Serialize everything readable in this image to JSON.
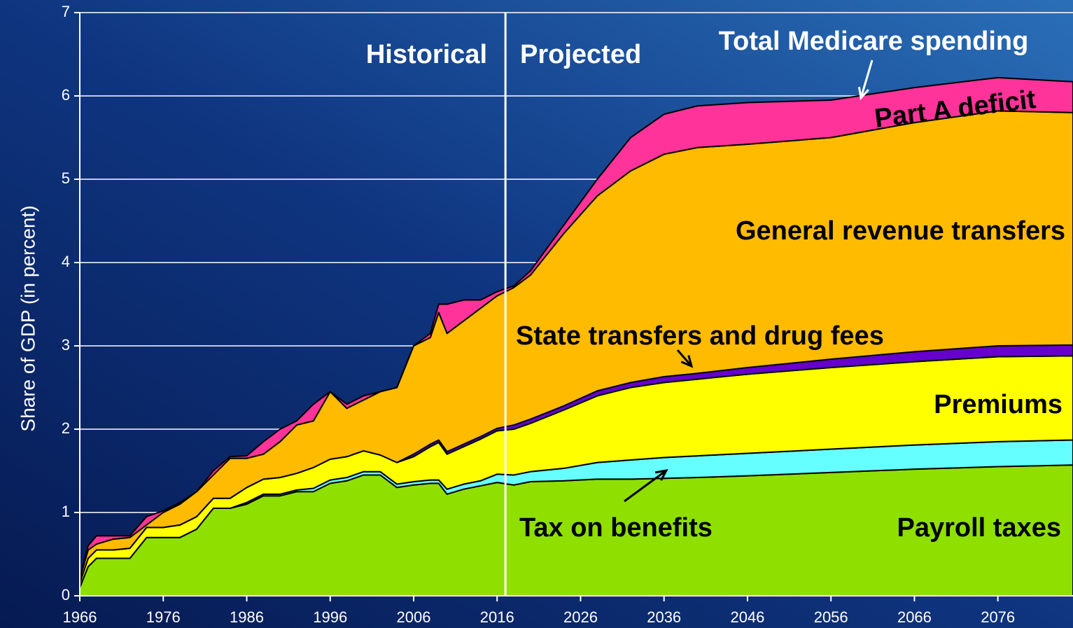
{
  "chart_data": {
    "type": "stacked_area",
    "y_label": "Share of GDP (in percent)",
    "annotations": [
      "Historical",
      "Projected",
      "Total Medicare spending"
    ],
    "divider_x": 2017,
    "x": [
      1966,
      1967,
      1968,
      1970,
      1972,
      1974,
      1976,
      1978,
      1980,
      1982,
      1984,
      1986,
      1988,
      1990,
      1992,
      1994,
      1996,
      1998,
      2000,
      2002,
      2004,
      2006,
      2008,
      2009,
      2010,
      2012,
      2014,
      2016,
      2018,
      2020,
      2024,
      2028,
      2032,
      2036,
      2040,
      2046,
      2056,
      2066,
      2076,
      2085
    ],
    "series": [
      {
        "name": "Payroll taxes",
        "color": "#8fe000",
        "values": [
          0.1,
          0.35,
          0.45,
          0.45,
          0.45,
          0.7,
          0.7,
          0.7,
          0.8,
          1.05,
          1.05,
          1.1,
          1.2,
          1.2,
          1.25,
          1.25,
          1.35,
          1.38,
          1.45,
          1.45,
          1.3,
          1.33,
          1.35,
          1.35,
          1.22,
          1.28,
          1.32,
          1.36,
          1.33,
          1.37,
          1.38,
          1.4,
          1.4,
          1.41,
          1.42,
          1.44,
          1.48,
          1.52,
          1.55,
          1.57
        ]
      },
      {
        "name": "Tax on benefits",
        "color": "#66ffff",
        "values": [
          0,
          0,
          0,
          0,
          0,
          0,
          0,
          0,
          0,
          0,
          0,
          0.02,
          0.02,
          0.02,
          0.02,
          0.04,
          0.04,
          0.04,
          0.04,
          0.04,
          0.04,
          0.04,
          0.04,
          0.04,
          0.06,
          0.06,
          0.06,
          0.1,
          0.12,
          0.12,
          0.15,
          0.2,
          0.23,
          0.25,
          0.26,
          0.27,
          0.28,
          0.29,
          0.3,
          0.3
        ]
      },
      {
        "name": "Premiums",
        "color": "#ffff00",
        "values": [
          0.05,
          0.1,
          0.1,
          0.1,
          0.12,
          0.12,
          0.12,
          0.15,
          0.15,
          0.12,
          0.12,
          0.18,
          0.18,
          0.2,
          0.2,
          0.25,
          0.25,
          0.25,
          0.25,
          0.2,
          0.26,
          0.3,
          0.4,
          0.45,
          0.42,
          0.45,
          0.5,
          0.52,
          0.55,
          0.58,
          0.7,
          0.8,
          0.87,
          0.9,
          0.92,
          0.95,
          0.98,
          1.0,
          1.02,
          1.01
        ]
      },
      {
        "name": "State transfers and drug fees",
        "color": "#6600cc",
        "values": [
          0,
          0,
          0,
          0,
          0,
          0,
          0,
          0,
          0,
          0,
          0,
          0,
          0,
          0,
          0,
          0,
          0,
          0,
          0,
          0,
          0,
          0.03,
          0.03,
          0.03,
          0.03,
          0.03,
          0.03,
          0.03,
          0.05,
          0.05,
          0.05,
          0.06,
          0.06,
          0.07,
          0.07,
          0.08,
          0.1,
          0.12,
          0.13,
          0.13
        ]
      },
      {
        "name": "General revenue transfers",
        "color": "#ffbb00",
        "values": [
          0.05,
          0.1,
          0.07,
          0.13,
          0.13,
          0.03,
          0.18,
          0.25,
          0.3,
          0.28,
          0.48,
          0.35,
          0.3,
          0.43,
          0.58,
          0.56,
          0.81,
          0.58,
          0.61,
          0.76,
          0.9,
          1.3,
          1.28,
          1.53,
          1.42,
          1.48,
          1.54,
          1.59,
          1.65,
          1.73,
          2.07,
          2.34,
          2.54,
          2.67,
          2.71,
          2.68,
          2.66,
          2.75,
          2.82,
          2.79
        ]
      },
      {
        "name": "Part A deficit",
        "color": "#ff3399",
        "values": [
          0,
          0.05,
          0.1,
          0.04,
          0.02,
          0.1,
          0.02,
          0.02,
          0,
          0.05,
          0.02,
          0.03,
          0.15,
          0.15,
          0.05,
          0.2,
          0,
          0.05,
          0.05,
          0,
          0,
          0,
          0.05,
          0.1,
          0.35,
          0.25,
          0.1,
          0.05,
          0.02,
          0.05,
          0.1,
          0.2,
          0.4,
          0.48,
          0.5,
          0.5,
          0.45,
          0.42,
          0.4,
          0.37
        ]
      }
    ],
    "xlim": [
      1966,
      2085
    ],
    "xticks": [
      1966,
      1976,
      1986,
      1996,
      2006,
      2016,
      2026,
      2036,
      2046,
      2056,
      2066,
      2076
    ],
    "ylim": [
      0,
      7
    ],
    "yticks": [
      0,
      1,
      2,
      3,
      4,
      5,
      6,
      7
    ],
    "grid": true
  }
}
